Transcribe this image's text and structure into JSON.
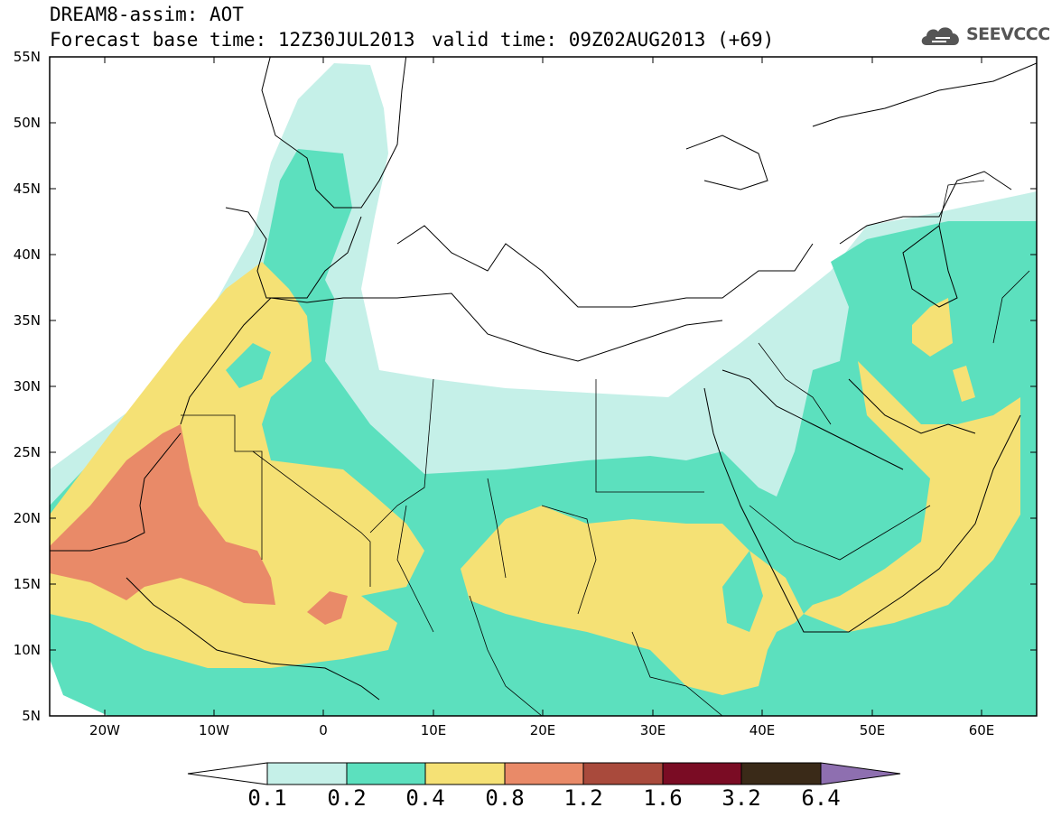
{
  "title": {
    "line1": "DREAM8-assim: AOT",
    "line2": "Forecast base time: 12Z30JUL2013",
    "valid": "valid time: 09Z02AUG2013 (+69)"
  },
  "logo": {
    "text": "SEEVCCC",
    "icon": "cloud-icon"
  },
  "map": {
    "lat_labels": [
      "55N",
      "50N",
      "45N",
      "40N",
      "35N",
      "30N",
      "25N",
      "20N",
      "15N",
      "10N",
      "5N"
    ],
    "lon_labels": [
      "20W",
      "10W",
      "0",
      "10E",
      "20E",
      "30E",
      "40E",
      "50E",
      "60E"
    ],
    "lat_range": [
      5,
      55
    ],
    "lon_range": [
      -25,
      65
    ]
  },
  "colorbar": {
    "labels": [
      "0.1",
      "0.2",
      "0.4",
      "0.8",
      "1.2",
      "1.6",
      "3.2",
      "6.4"
    ],
    "colors": [
      "#ffffff",
      "#c5f0e8",
      "#5ce0be",
      "#f5e175",
      "#e98a68",
      "#a94a3c",
      "#7a0c24",
      "#3a2a18",
      "#8e6fb0"
    ]
  },
  "colors": {
    "level_0_1": "#c5f0e8",
    "level_0_2": "#5ce0be",
    "level_0_4": "#f5e175",
    "level_0_8": "#e98a68",
    "level_1_2": "#a94a3c"
  }
}
